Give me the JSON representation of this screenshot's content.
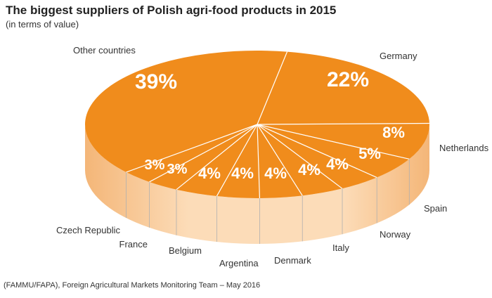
{
  "header": {
    "title": "The biggest suppliers of Polish agri-food products in 2015",
    "subtitle": "(in terms of value)"
  },
  "footer": {
    "source": "(FAMMU/FAPA), Foreign Agricultural Markets Monitoring Team – May 2016"
  },
  "colors": {
    "top": "#f08c1c",
    "side_light": "#fcdcb8",
    "side_dark": "#f4b678",
    "divider": "#ffffff",
    "leader": "#b0b0b0"
  },
  "chart_data": {
    "type": "pie",
    "style": "3d",
    "title": "The biggest suppliers of Polish agri-food products in 2015",
    "subtitle": "(in terms of value)",
    "slices": [
      {
        "label": "Germany",
        "value": 22,
        "display": "22%"
      },
      {
        "label": "Netherlands",
        "value": 8,
        "display": "8%"
      },
      {
        "label": "Spain",
        "value": 5,
        "display": "5%"
      },
      {
        "label": "Norway",
        "value": 4,
        "display": "4%"
      },
      {
        "label": "Italy",
        "value": 4,
        "display": "4%"
      },
      {
        "label": "Denmark",
        "value": 4,
        "display": "4%"
      },
      {
        "label": "Argentina",
        "value": 4,
        "display": "4%"
      },
      {
        "label": "Belgium",
        "value": 4,
        "display": "4%"
      },
      {
        "label": "France",
        "value": 3,
        "display": "3%"
      },
      {
        "label": "Czech Republic",
        "value": 3,
        "display": "3%"
      },
      {
        "label": "Other countries",
        "value": 39,
        "display": "39%"
      }
    ]
  }
}
